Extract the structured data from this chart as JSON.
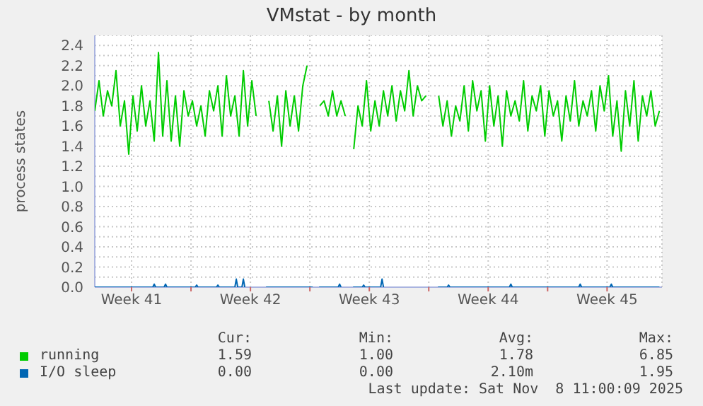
{
  "chart_data": {
    "type": "line",
    "title": "VMstat - by month",
    "ylabel": "process states",
    "xlim": [
      "2025-10-07T08:00",
      "2025-11-09T17:36"
    ],
    "xticks": [
      {
        "value": "2025-10-09T12:00",
        "label": "Week 41"
      },
      {
        "value": "2025-10-13T00:00",
        "label": null
      },
      {
        "value": "2025-10-16T12:00",
        "label": "Week 42"
      },
      {
        "value": "2025-10-20T00:00",
        "label": null
      },
      {
        "value": "2025-10-23T12:00",
        "label": "Week 43"
      },
      {
        "value": "2025-10-27T00:00",
        "label": null
      },
      {
        "value": "2025-10-30T12:00",
        "label": "Week 44"
      },
      {
        "value": "2025-11-03T00:00",
        "label": null
      },
      {
        "value": "2025-11-06T12:00",
        "label": "Week 45"
      }
    ],
    "ylim": [
      0,
      2.5
    ],
    "yticks": [
      {
        "value": 0,
        "label": "0.0"
      },
      {
        "value": 0.1,
        "label": null
      },
      {
        "value": 0.2,
        "label": "0.2"
      },
      {
        "value": 0.3,
        "label": null
      },
      {
        "value": 0.4,
        "label": "0.4"
      },
      {
        "value": 0.5,
        "label": null
      },
      {
        "value": 0.6,
        "label": "0.6"
      },
      {
        "value": 0.7,
        "label": null
      },
      {
        "value": 0.8,
        "label": "0.8"
      },
      {
        "value": 0.9,
        "label": null
      },
      {
        "value": 1.0,
        "label": "1.0"
      },
      {
        "value": 1.1,
        "label": null
      },
      {
        "value": 1.2,
        "label": "1.2"
      },
      {
        "value": 1.3,
        "label": null
      },
      {
        "value": 1.4,
        "label": "1.4"
      },
      {
        "value": 1.5,
        "label": null
      },
      {
        "value": 1.6,
        "label": "1.6"
      },
      {
        "value": 1.7,
        "label": null
      },
      {
        "value": 1.8,
        "label": "1.8"
      },
      {
        "value": 1.9,
        "label": null
      },
      {
        "value": 2.0,
        "label": "2.0"
      },
      {
        "value": 2.1,
        "label": null
      },
      {
        "value": 2.2,
        "label": "2.2"
      },
      {
        "value": 2.3,
        "label": null
      },
      {
        "value": 2.4,
        "label": "2.4"
      }
    ],
    "grid": true,
    "legend": "bottom",
    "marker": "none",
    "line_style": "solid",
    "series": [
      {
        "name": "running",
        "color": "#00cc00",
        "x": [
          "2025-10-07T08:00",
          "2025-10-07T14:00",
          "2025-10-07T20:00",
          "2025-10-08T02:00",
          "2025-10-08T08:00",
          "2025-10-08T14:00",
          "2025-10-08T20:00",
          "2025-10-09T02:00",
          "2025-10-09T08:00",
          "2025-10-09T14:00",
          "2025-10-09T20:00",
          "2025-10-10T02:00",
          "2025-10-10T08:00",
          "2025-10-10T14:00",
          "2025-10-10T20:00",
          "2025-10-11T02:00",
          "2025-10-11T08:00",
          "2025-10-11T14:00",
          "2025-10-11T20:00",
          "2025-10-12T02:00",
          "2025-10-12T08:00",
          "2025-10-12T14:00",
          "2025-10-12T20:00",
          "2025-10-13T02:00",
          "2025-10-13T08:00",
          "2025-10-13T14:00",
          "2025-10-13T20:00",
          "2025-10-14T02:00",
          "2025-10-14T08:00",
          "2025-10-14T14:00",
          "2025-10-14T20:00",
          "2025-10-15T02:00",
          "2025-10-15T08:00",
          "2025-10-15T14:00",
          "2025-10-15T20:00",
          "2025-10-16T02:00",
          "2025-10-16T08:00",
          "2025-10-16T14:00",
          "2025-10-16T20:00",
          "2025-10-17T02:00",
          "2025-10-17T08:00",
          "2025-10-17T14:00",
          "2025-10-17T20:00",
          "2025-10-18T02:00",
          "2025-10-18T08:00",
          "2025-10-18T14:00",
          "2025-10-18T20:00",
          "2025-10-19T02:00",
          "2025-10-19T08:00",
          "2025-10-19T14:00",
          "2025-10-19T20:00",
          "2025-10-20T02:00",
          "2025-10-20T08:00",
          "2025-10-20T14:00",
          "2025-10-20T20:00",
          "2025-10-21T02:00",
          "2025-10-21T08:00",
          "2025-10-21T14:00",
          "2025-10-21T20:00",
          "2025-10-22T02:00",
          "2025-10-22T08:00",
          "2025-10-22T14:00",
          "2025-10-22T20:00",
          "2025-10-23T02:00",
          "2025-10-23T08:00",
          "2025-10-23T14:00",
          "2025-10-23T20:00",
          "2025-10-24T02:00",
          "2025-10-24T08:00",
          "2025-10-24T14:00",
          "2025-10-24T20:00",
          "2025-10-25T02:00",
          "2025-10-25T08:00",
          "2025-10-25T14:00",
          "2025-10-25T20:00",
          "2025-10-26T02:00",
          "2025-10-26T08:00",
          "2025-10-26T14:00",
          "2025-10-26T20:00",
          "2025-10-27T02:00",
          "2025-10-27T08:00",
          "2025-10-27T14:00",
          "2025-10-27T20:00",
          "2025-10-28T02:00",
          "2025-10-28T08:00",
          "2025-10-28T14:00",
          "2025-10-28T20:00",
          "2025-10-29T02:00",
          "2025-10-29T08:00",
          "2025-10-29T14:00",
          "2025-10-29T20:00",
          "2025-10-30T02:00",
          "2025-10-30T08:00",
          "2025-10-30T14:00",
          "2025-10-30T20:00",
          "2025-10-31T02:00",
          "2025-10-31T08:00",
          "2025-10-31T14:00",
          "2025-10-31T20:00",
          "2025-11-01T02:00",
          "2025-11-01T08:00",
          "2025-11-01T14:00",
          "2025-11-01T20:00",
          "2025-11-02T02:00",
          "2025-11-02T08:00",
          "2025-11-02T14:00",
          "2025-11-02T20:00",
          "2025-11-03T02:00",
          "2025-11-03T08:00",
          "2025-11-03T14:00",
          "2025-11-03T20:00",
          "2025-11-04T02:00",
          "2025-11-04T08:00",
          "2025-11-04T14:00",
          "2025-11-04T20:00",
          "2025-11-05T02:00",
          "2025-11-05T08:00",
          "2025-11-05T14:00",
          "2025-11-05T20:00",
          "2025-11-06T02:00",
          "2025-11-06T08:00",
          "2025-11-06T14:00",
          "2025-11-06T20:00",
          "2025-11-07T02:00",
          "2025-11-07T08:00",
          "2025-11-07T14:00",
          "2025-11-07T20:00",
          "2025-11-08T02:00",
          "2025-11-08T08:00",
          "2025-11-08T14:00",
          "2025-11-08T20:00",
          "2025-11-09T02:00",
          "2025-11-09T08:00",
          "2025-11-09T14:00"
        ],
        "values": [
          1.75,
          2.05,
          1.7,
          1.95,
          1.8,
          2.15,
          1.6,
          1.85,
          1.32,
          1.9,
          1.55,
          2.0,
          1.6,
          1.85,
          1.45,
          2.33,
          1.5,
          2.05,
          1.45,
          1.9,
          1.4,
          1.95,
          1.7,
          1.85,
          1.6,
          1.8,
          1.5,
          1.95,
          1.75,
          2.0,
          1.5,
          2.1,
          1.7,
          1.9,
          1.5,
          2.15,
          1.6,
          2.05,
          1.7,
          null,
          null,
          1.85,
          1.55,
          1.9,
          1.4,
          1.95,
          1.6,
          1.9,
          1.55,
          2.0,
          2.2,
          null,
          null,
          1.8,
          1.85,
          1.7,
          1.95,
          1.7,
          1.85,
          1.7,
          null,
          1.37,
          1.8,
          1.6,
          2.05,
          1.55,
          1.85,
          1.6,
          1.95,
          1.7,
          2.0,
          1.65,
          1.95,
          1.75,
          2.15,
          1.7,
          2.0,
          1.85,
          1.9,
          null,
          null,
          1.9,
          1.6,
          1.85,
          1.5,
          1.8,
          1.65,
          2.0,
          1.55,
          2.05,
          1.75,
          1.95,
          1.45,
          2.0,
          1.6,
          1.9,
          1.4,
          1.95,
          1.7,
          1.85,
          1.65,
          2.05,
          1.55,
          1.9,
          1.75,
          2.0,
          1.5,
          1.95,
          1.7,
          1.85,
          1.45,
          1.9,
          1.65,
          2.05,
          1.6,
          1.85,
          1.7,
          1.95,
          1.55,
          2.0,
          1.75,
          2.1,
          1.5,
          1.85,
          1.35,
          1.95,
          1.6,
          2.05,
          1.45,
          1.9,
          1.7,
          1.95,
          1.6,
          1.75
        ]
      },
      {
        "name": "I/O sleep",
        "color": "#0066b3",
        "x": [
          "2025-10-07T08:00",
          "2025-10-10T18:00",
          "2025-10-10T20:00",
          "2025-10-10T22:00",
          "2025-10-11T10:00",
          "2025-10-11T12:00",
          "2025-10-11T14:00",
          "2025-10-13T06:00",
          "2025-10-13T08:00",
          "2025-10-13T10:00",
          "2025-10-14T12:00",
          "2025-10-14T14:00",
          "2025-10-14T16:00",
          "2025-10-15T14:00",
          "2025-10-15T16:00",
          "2025-10-15T18:00",
          "2025-10-16T00:00",
          "2025-10-16T02:00",
          "2025-10-16T04:00",
          "2025-10-17T06:00",
          "2025-10-17T10:00",
          "2025-10-20T04:00",
          "2025-10-20T08:00",
          "2025-10-20T13:00",
          "2025-10-21T16:00",
          "2025-10-21T18:00",
          "2025-10-21T20:00",
          "2025-10-22T08:00",
          "2025-10-22T13:00",
          "2025-10-23T02:00",
          "2025-10-23T04:00",
          "2025-10-23T06:00",
          "2025-10-24T04:00",
          "2025-10-24T06:00",
          "2025-10-24T08:00",
          "2025-10-27T06:00",
          "2025-10-27T13:00",
          "2025-10-28T02:00",
          "2025-10-28T04:00",
          "2025-10-28T06:00",
          "2025-10-31T18:00",
          "2025-10-31T20:00",
          "2025-10-31T22:00",
          "2025-11-04T20:00",
          "2025-11-04T22:00",
          "2025-11-05T00:00",
          "2025-11-06T16:00",
          "2025-11-06T18:00",
          "2025-11-06T20:00",
          "2025-11-09T14:00"
        ],
        "values": [
          0,
          0,
          0.03,
          0,
          0,
          0.03,
          0,
          0,
          0.02,
          0,
          0,
          0.02,
          0,
          0,
          0.08,
          0,
          0,
          0.08,
          0,
          null,
          0,
          0,
          null,
          0,
          0,
          0.03,
          0,
          null,
          0,
          0,
          0.02,
          0,
          0,
          0.08,
          0,
          null,
          0,
          0,
          0.02,
          0,
          0,
          0.03,
          0,
          0,
          0.03,
          0,
          0,
          0.03,
          0,
          0
        ]
      }
    ],
    "annotations": [
      "Cur:",
      "Min:",
      "Avg:",
      "Max:",
      "1.59",
      "1.00",
      "1.78",
      "6.85",
      "0.00",
      "0.00",
      "2.10m",
      "1.95",
      "Last update: Sat Nov  8 11:00:09 2025"
    ]
  }
}
